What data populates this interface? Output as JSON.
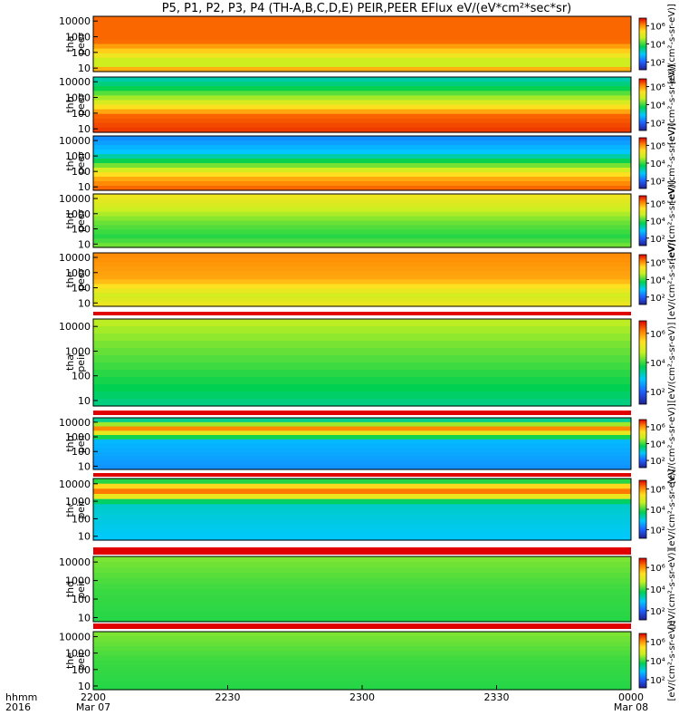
{
  "header": {
    "title": "P5, P1, P2, P3, P4 (TH-A,B,C,D,E) PEIR,PEER EFlux eV/(eV*cm²*sec*sr)"
  },
  "footer": {
    "row_label_top": "hhmm",
    "row_label_bottom": "2016",
    "x_ticks": [
      {
        "label": "2200",
        "sublabel": "Mar 07"
      },
      {
        "label": "2230",
        "sublabel": ""
      },
      {
        "label": "2300",
        "sublabel": ""
      },
      {
        "label": "2330",
        "sublabel": ""
      },
      {
        "label": "0000",
        "sublabel": "Mar 08"
      }
    ]
  },
  "colorbar": {
    "tick_labels": [
      "10⁶",
      "10⁴",
      "10²"
    ],
    "label": "[eV/(cm²-s-sr-eV)]"
  },
  "chart_data": {
    "type": "heatmap",
    "title": "P5, P1, P2, P3, P4 (TH-A,B,C,D,E) PEIR,PEER EFlux eV/(eV*cm²*sec*sr)",
    "x_range": [
      "2016-03-07 22:00",
      "2016-03-08 00:00"
    ],
    "y_scale": "log",
    "y_ticks": [
      10,
      100,
      1000,
      10000
    ],
    "y_tick_labels": [
      "10",
      "100",
      "1000",
      "10000"
    ],
    "colorbar_range": [
      100,
      1000000
    ],
    "colorbar_ticks": [
      "10²",
      "10⁴",
      "10⁶"
    ],
    "colorbar_label": "[eV/(cm²-s-sr-eV)]",
    "panels": [
      {
        "probe": "tha",
        "species": "peer",
        "label": [
          "tha",
          "peer"
        ]
      },
      {
        "probe": "thb",
        "species": "peer",
        "label": [
          "thb",
          "peer"
        ]
      },
      {
        "probe": "thc",
        "species": "peer",
        "label": [
          "thc",
          "peer"
        ]
      },
      {
        "probe": "thd",
        "species": "peer",
        "label": [
          "thd",
          "peer"
        ]
      },
      {
        "probe": "the",
        "species": "peer",
        "label": [
          "the",
          "peer"
        ]
      },
      {
        "probe": "tha",
        "species": "peir",
        "label": [
          "tha",
          "peir"
        ]
      },
      {
        "probe": "thb",
        "species": "peir",
        "label": [
          "thb",
          "peir"
        ]
      },
      {
        "probe": "thc",
        "species": "peir",
        "label": [
          "thc",
          "peir"
        ]
      },
      {
        "probe": "thd",
        "species": "peir",
        "label": [
          "thd",
          "peir"
        ]
      },
      {
        "probe": "the",
        "species": "peir",
        "label": [
          "the",
          "peir"
        ]
      }
    ]
  }
}
